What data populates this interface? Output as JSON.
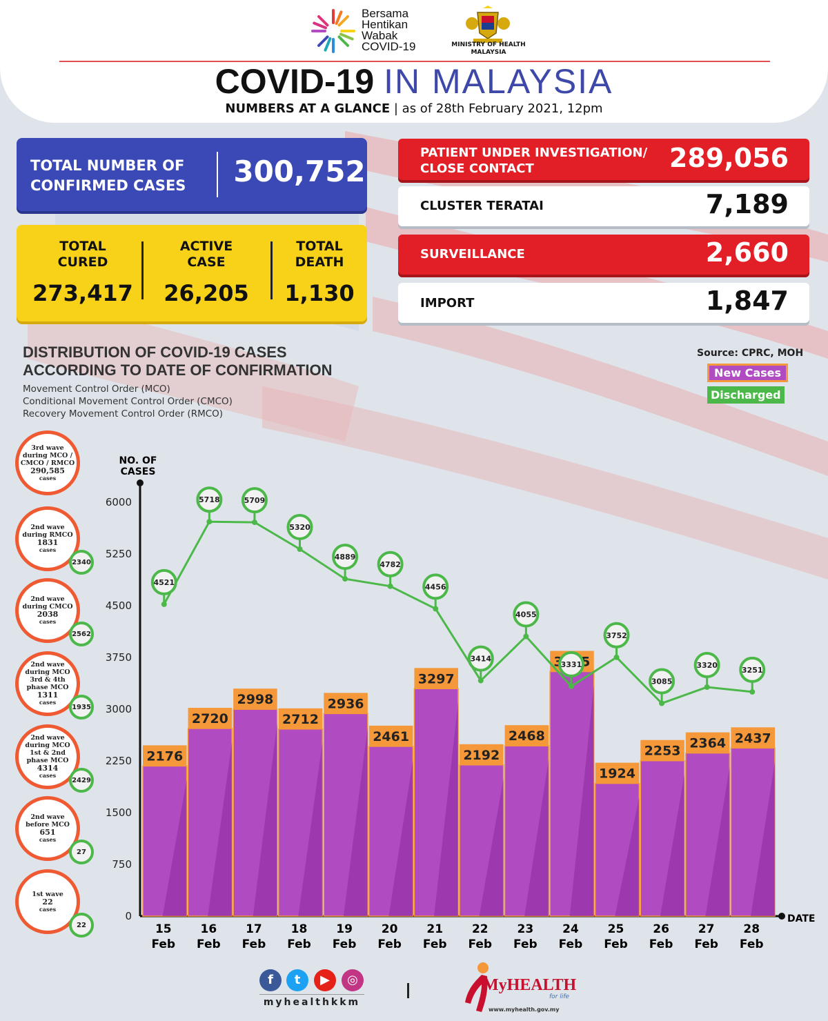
{
  "header": {
    "logo_text": [
      "Bersama",
      "Hentikan",
      "Wabak",
      "COVID-19"
    ],
    "ministry": "MINISTRY OF HEALTH MALAYSIA",
    "title_bold": "COVID-19",
    "title_light": "IN MALAYSIA",
    "subtitle_bold": "NUMBERS AT A GLANCE",
    "subtitle_rest": "| as of 28th February 2021, 12pm"
  },
  "totals": {
    "confirmed_label": "TOTAL NUMBER OF CONFIRMED CASES",
    "confirmed_value": "300,752",
    "cured_label": "TOTAL CURED",
    "cured_value": "273,417",
    "active_label": "ACTIVE CASE",
    "active_value": "26,205",
    "death_label": "TOTAL DEATH",
    "death_value": "1,130"
  },
  "sources": [
    {
      "label": "PATIENT UNDER INVESTIGATION/ CLOSE CONTACT",
      "value": "289,056",
      "style": "red"
    },
    {
      "label": "CLUSTER TERATAI",
      "value": "7,189",
      "style": "white"
    },
    {
      "label": "SURVEILLANCE",
      "value": "2,660",
      "style": "red"
    },
    {
      "label": "IMPORT",
      "value": "1,847",
      "style": "white"
    }
  ],
  "distribution": {
    "title_line1": "DISTRIBUTION OF COVID-19 CASES",
    "title_line2": "ACCORDING TO DATE OF CONFIRMATION",
    "mco": "Movement Control Order (MCO)",
    "cmco": "Conditional Movement Control Order (CMCO)",
    "rmco": "Recovery Movement Control Order (RMCO)",
    "source": "Source: CPRC, MOH"
  },
  "waves": [
    {
      "text": "3rd wave during MCO / CMCO / RMCO",
      "count": "290,585",
      "unit": "cases",
      "discharged": ""
    },
    {
      "text": "2nd wave during RMCO",
      "count": "1831",
      "unit": "cases",
      "discharged": "2340"
    },
    {
      "text": "2nd wave during CMCO",
      "count": "2038",
      "unit": "cases",
      "discharged": "2562"
    },
    {
      "text": "2nd wave during MCO 3rd & 4th phase MCO",
      "count": "1311",
      "unit": "cases",
      "discharged": "1935"
    },
    {
      "text": "2nd wave during MCO 1st & 2nd phase MCO",
      "count": "4314",
      "unit": "cases",
      "discharged": "2429"
    },
    {
      "text": "2nd wave before MCO",
      "count": "651",
      "unit": "cases",
      "discharged": "27"
    },
    {
      "text": "1st wave",
      "count": "22",
      "unit": "cases",
      "discharged": "22"
    }
  ],
  "chart_data": {
    "type": "bar",
    "ylabel": "NO. OF CASES",
    "xlabel": "DATE",
    "ylim": [
      0,
      6000
    ],
    "yticks": [
      0,
      750,
      1500,
      2250,
      3000,
      3750,
      4500,
      5250,
      6000
    ],
    "categories": [
      [
        "15",
        "Feb"
      ],
      [
        "16",
        "Feb"
      ],
      [
        "17",
        "Feb"
      ],
      [
        "18",
        "Feb"
      ],
      [
        "19",
        "Feb"
      ],
      [
        "20",
        "Feb"
      ],
      [
        "21",
        "Feb"
      ],
      [
        "22",
        "Feb"
      ],
      [
        "23",
        "Feb"
      ],
      [
        "24",
        "Feb"
      ],
      [
        "25",
        "Feb"
      ],
      [
        "26",
        "Feb"
      ],
      [
        "27",
        "Feb"
      ],
      [
        "28",
        "Feb"
      ]
    ],
    "series": [
      {
        "name": "New Cases",
        "type": "bar",
        "color": "#b04bc1",
        "label_color": "#f5983a",
        "values": [
          2176,
          2720,
          2998,
          2712,
          2936,
          2461,
          3297,
          2192,
          2468,
          3545,
          1924,
          2253,
          2364,
          2437
        ]
      },
      {
        "name": "Discharged",
        "type": "line",
        "color": "#4cb849",
        "values": [
          4521,
          5718,
          5709,
          5320,
          4889,
          4782,
          4456,
          3414,
          4055,
          3331,
          3752,
          3085,
          3320,
          3251
        ]
      }
    ],
    "legend": "top-right"
  },
  "footer": {
    "social_icons": [
      "facebook-icon",
      "twitter-icon",
      "youtube-icon",
      "instagram-icon"
    ],
    "handle": "myhealthkkm",
    "brand": "MyHEALTH",
    "tagline": "for life",
    "website": "www.myhealth.gov.my"
  }
}
